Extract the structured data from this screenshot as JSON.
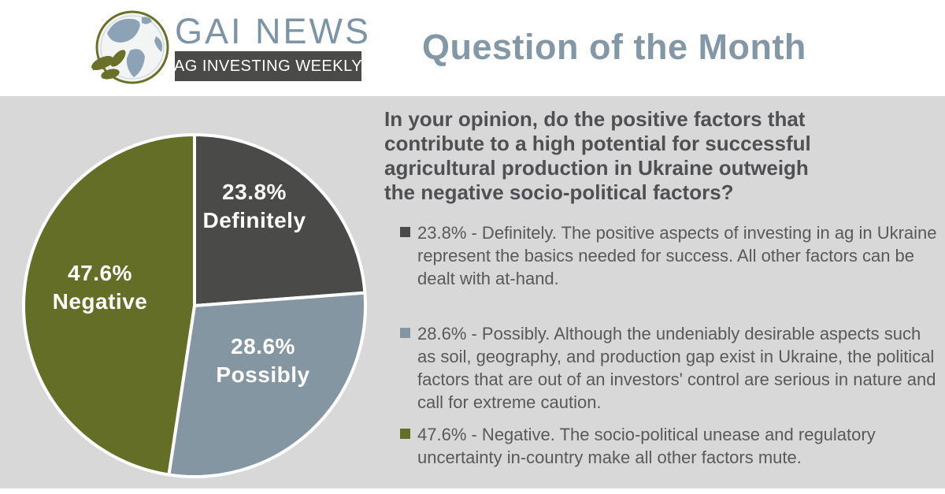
{
  "header": {
    "brand": "GAI NEWS",
    "tagline": "AG INVESTING WEEKLY",
    "title": "Question of the Month"
  },
  "question": "In your opinion, do the positive factors that\ncontribute to a high potential for successful\nagricultural production in Ukraine outweigh\nthe negative socio-political factors?",
  "chart_data": {
    "type": "pie",
    "title": "Question of the Month",
    "start_angle_deg": 0,
    "direction": "clockwise",
    "legend_position": "right",
    "slices": [
      {
        "label": "Definitely",
        "pct_label": "23.8%",
        "value": 23.8,
        "color": "#4a4a48"
      },
      {
        "label": "Possibly",
        "pct_label": "28.6%",
        "value": 28.6,
        "color": "#8496a2"
      },
      {
        "label": "Negative",
        "pct_label": "47.6%",
        "value": 47.6,
        "color": "#646e26"
      }
    ]
  },
  "legend": [
    {
      "text": "23.8% - Definitely. The positive aspects of investing in ag in Ukraine represent the basics needed for success. All other factors can be dealt with at-hand."
    },
    {
      "text": "28.6% - Possibly. Although the undeniably desirable aspects such as soil, geography, and production gap exist in Ukraine, the political factors that are out of an investors' control are serious in nature and call for extreme caution."
    },
    {
      "text": "47.6% - Negative. The socio-political unease and regulatory uncertainty in-country make all other factors mute."
    }
  ],
  "colors": {
    "header_bg": "#ffffff",
    "body_bg": "#d8d8d8",
    "title": "#8298a6",
    "brand": "#7b95a7",
    "banner_bg": "#4a4a48",
    "question_text": "#4f5054",
    "legend_text": "#58595b"
  }
}
